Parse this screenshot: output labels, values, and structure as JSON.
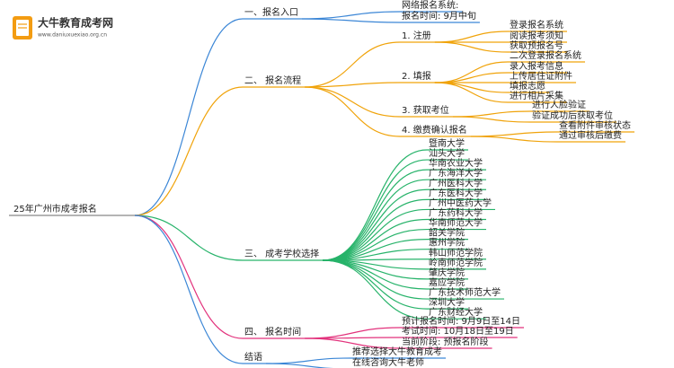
{
  "logo": {
    "name": "大牛教育成考网",
    "url": "www.daniuxuexiao.org.cn"
  },
  "root": "25年广州市成考报名",
  "branches": [
    {
      "label": "一、报名入口",
      "children": [
        {
          "label": "网络报名系统:"
        },
        {
          "label": "报名时间: 9月中旬"
        }
      ]
    },
    {
      "label": "二、 报名流程",
      "children": [
        {
          "label": "1. 注册",
          "children": [
            {
              "label": "登录报名系统"
            },
            {
              "label": "阅读报考须知"
            },
            {
              "label": "获取预报名号"
            }
          ]
        },
        {
          "label": "2. 填报",
          "children": [
            {
              "label": "二次登录报名系统"
            },
            {
              "label": "录入报考信息"
            },
            {
              "label": "上传居住证附件"
            },
            {
              "label": "填报志愿"
            },
            {
              "label": "进行相片采集"
            }
          ]
        },
        {
          "label": "3. 获取考位",
          "children": [
            {
              "label": "进行人脸验证"
            },
            {
              "label": "验证成功后获取考位"
            }
          ]
        },
        {
          "label": "4. 缴费确认报名",
          "children": [
            {
              "label": "查看附件审核状态"
            },
            {
              "label": "通过审核后缴费"
            }
          ]
        }
      ]
    },
    {
      "label": "三、 成考学校选择",
      "children": [
        {
          "label": "暨南大学"
        },
        {
          "label": "汕头大学"
        },
        {
          "label": "华南农业大学"
        },
        {
          "label": "广东海洋大学"
        },
        {
          "label": "广州医科大学"
        },
        {
          "label": "广东医科大学"
        },
        {
          "label": "广州中医药大学"
        },
        {
          "label": "广东药科大学"
        },
        {
          "label": "华南师范大学"
        },
        {
          "label": "韶关学院"
        },
        {
          "label": "惠州学院"
        },
        {
          "label": "韩山师范学院"
        },
        {
          "label": "岭南师范学院"
        },
        {
          "label": "肇庆学院"
        },
        {
          "label": "嘉应学院"
        },
        {
          "label": "广东技术师范大学"
        },
        {
          "label": "深圳大学"
        },
        {
          "label": "广东财经大学"
        }
      ]
    },
    {
      "label": "四、 报名时间",
      "children": [
        {
          "label": "预计报名时间: 9月9日至14日"
        },
        {
          "label": "考试时间: 10月18日至19日"
        },
        {
          "label": "当前阶段: 预报名阶段"
        }
      ]
    },
    {
      "label": "结语",
      "children": [
        {
          "label": "推荐选择大牛教育成考"
        },
        {
          "label": "在线咨询大牛老师"
        }
      ]
    }
  ]
}
